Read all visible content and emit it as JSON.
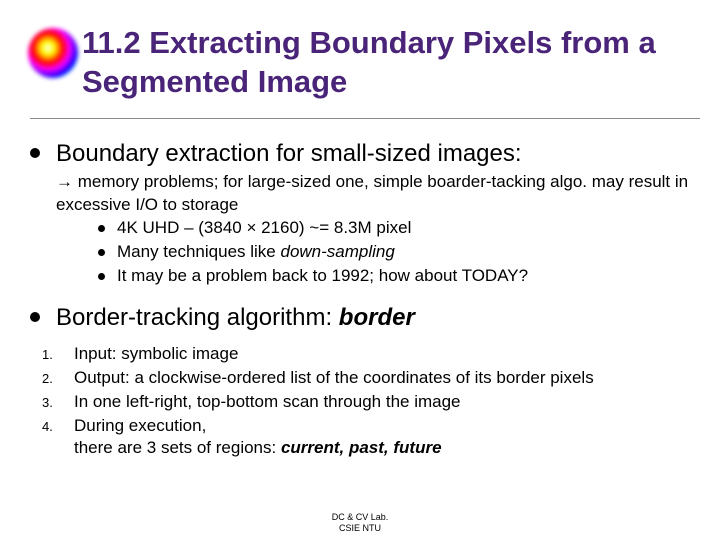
{
  "title": "11.2 Extracting Boundary Pixels from a Segmented Image",
  "b1": {
    "text": "Boundary extraction for small-sized images:",
    "sub": "memory problems; for large-sized one, simple boarder-tacking algo. may result in excessive I/O to storage",
    "nested": [
      "4K UHD – (3840 × 2160) ~= 8.3M pixel",
      "Many techniques like ",
      "It may be a problem back to 1992; how about TODAY?"
    ],
    "nested2_italic": "down-sampling"
  },
  "b2": {
    "text": "Border-tracking algorithm: ",
    "algo": "border"
  },
  "list": [
    "Input: symbolic image",
    "Output: a clockwise-ordered list of the coordinates of its border pixels",
    "In one left-right, top-bottom scan through the image",
    "During execution,"
  ],
  "list4b": "there are 3 sets of regions: ",
  "regions": "current, past, future",
  "footer1": "DC & CV Lab.",
  "footer2": "CSIE NTU",
  "arrow": "à"
}
